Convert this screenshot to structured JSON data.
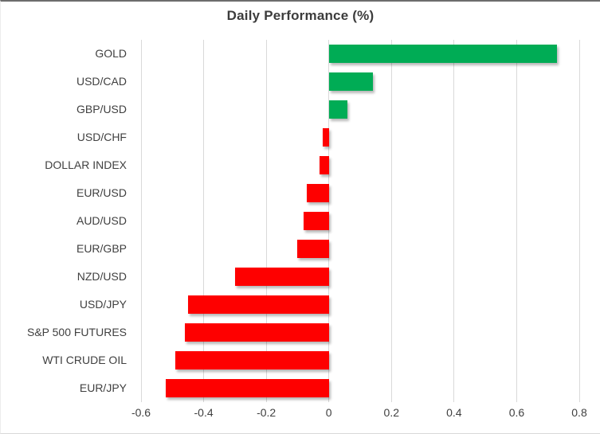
{
  "chart_data": {
    "type": "bar",
    "orientation": "horizontal",
    "title": "Daily Performance (%)",
    "categories": [
      "GOLD",
      "USD/CAD",
      "GBP/USD",
      "USD/CHF",
      "DOLLAR INDEX",
      "EUR/USD",
      "AUD/USD",
      "EUR/GBP",
      "NZD/USD",
      "USD/JPY",
      "S&P 500 FUTURES",
      "WTI CRUDE OIL",
      "EUR/JPY"
    ],
    "values": [
      0.73,
      0.14,
      0.06,
      -0.02,
      -0.03,
      -0.07,
      -0.08,
      -0.1,
      -0.3,
      -0.45,
      -0.46,
      -0.49,
      -0.52
    ],
    "xlim": [
      -0.6,
      0.8
    ],
    "x_ticks": [
      -0.6,
      -0.4,
      -0.2,
      0,
      0.2,
      0.4,
      0.6,
      0.8
    ],
    "x_tick_labels": [
      "-0.6",
      "-0.4",
      "-0.2",
      "0",
      "0.2",
      "0.4",
      "0.6",
      "0.8"
    ],
    "xlabel": "",
    "ylabel": "",
    "grid": "vertical",
    "legend_position": "none",
    "positive_color": "#00AC55",
    "negative_color": "#FE0000",
    "gridline_color": "#D9D9D9",
    "title_color": "#3C3C3C",
    "label_color": "#404040"
  }
}
